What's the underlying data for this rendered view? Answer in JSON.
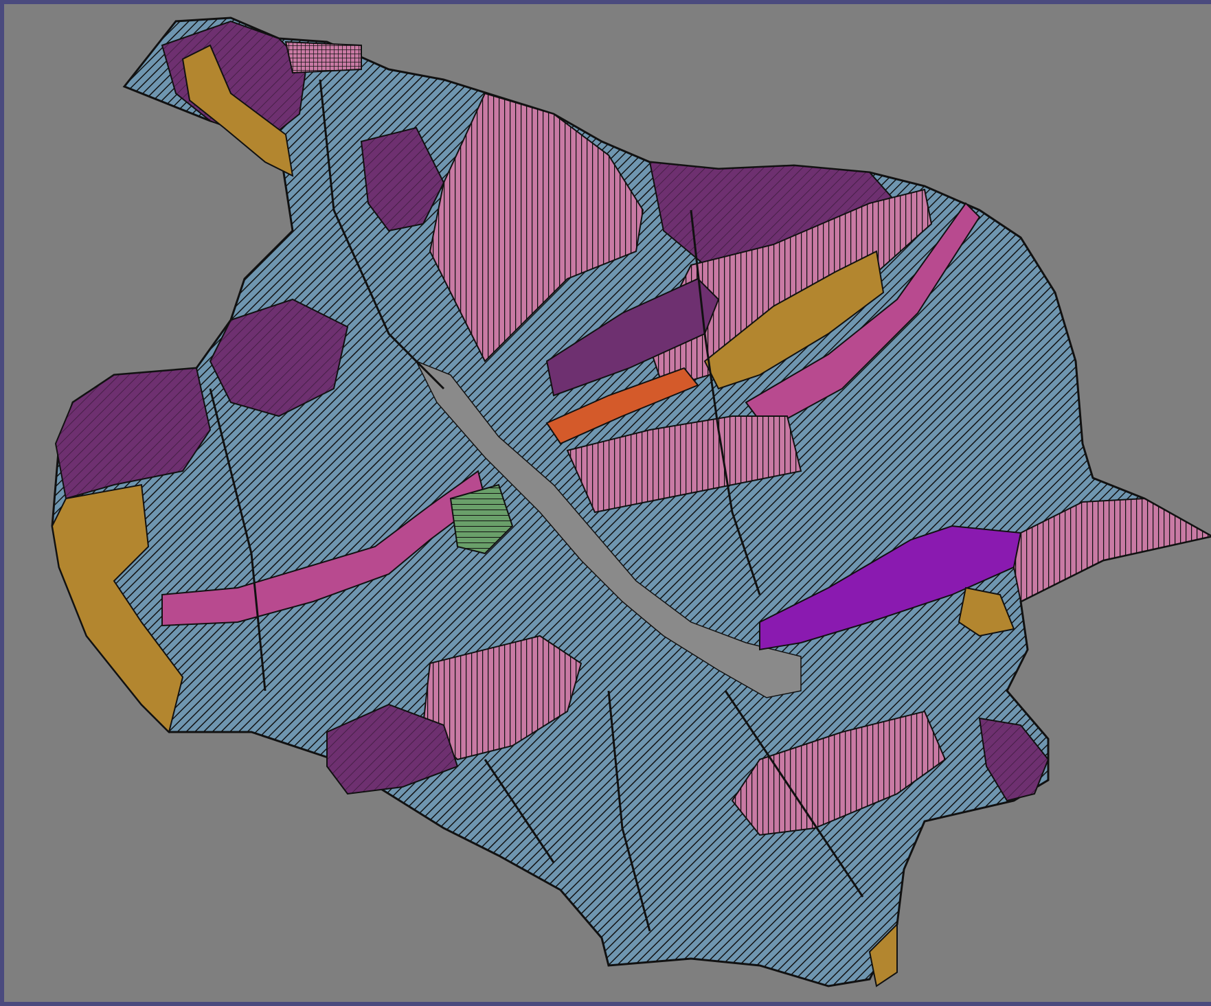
{
  "map": {
    "background": "#7f7f7f",
    "frame_color": "#4a4a7e",
    "outline_color": "#111111",
    "land_use_colors": {
      "blue": "#6f96b0",
      "pink": "#c97aa4",
      "purple": "#6e3070",
      "gold": "#b3862f",
      "magenta": "#b84a8f",
      "orange": "#d45a2a",
      "violet": "#8a1ab0",
      "green": "#6aa06a",
      "teal": "#2a9aa0",
      "red": "#8a1a2a"
    },
    "hatching": {
      "blue": "diagonal",
      "pink": "vertical",
      "purple": "diagonal",
      "gold": "none",
      "magenta": "none",
      "orange": "none",
      "violet": "none",
      "green": "horizontal"
    }
  }
}
